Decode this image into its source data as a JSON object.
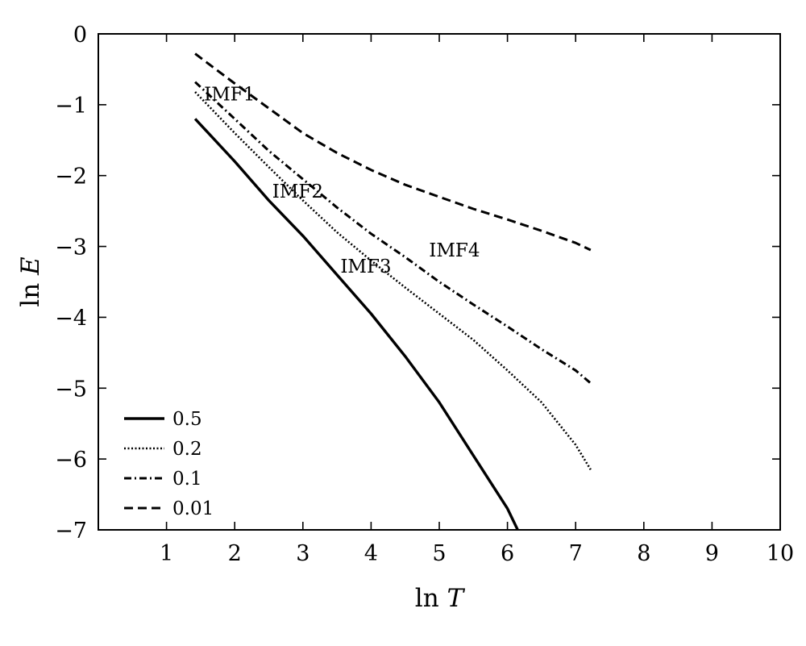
{
  "chart_data": {
    "type": "line",
    "xlabel_prefix": "ln ",
    "xlabel_var": "T",
    "ylabel_prefix": "ln ",
    "ylabel_var": "E",
    "xlim": [
      0,
      10
    ],
    "ylim": [
      -7,
      0
    ],
    "xticks": [
      "1",
      "2",
      "3",
      "4",
      "5",
      "6",
      "7",
      "8",
      "9",
      "10"
    ],
    "yticks": [
      "0",
      "−1",
      "−2",
      "−3",
      "−4",
      "−5",
      "−6",
      "−7"
    ],
    "legend_position": "bottom-left",
    "grid": false,
    "series": [
      {
        "name": "0.5",
        "style": "solid",
        "x": [
          1.42,
          2.0,
          2.5,
          3.0,
          3.5,
          4.0,
          4.5,
          5.0,
          5.5,
          6.0,
          6.15
        ],
        "y": [
          -1.2,
          -1.8,
          -2.35,
          -2.85,
          -3.4,
          -3.95,
          -4.55,
          -5.2,
          -5.95,
          -6.7,
          -7.0
        ]
      },
      {
        "name": "0.2",
        "style": "dotted",
        "x": [
          1.42,
          2.0,
          2.5,
          3.0,
          3.5,
          4.0,
          4.5,
          5.0,
          5.5,
          6.0,
          6.5,
          7.0,
          7.22
        ],
        "y": [
          -0.82,
          -1.4,
          -1.88,
          -2.35,
          -2.8,
          -3.2,
          -3.58,
          -3.95,
          -4.32,
          -4.75,
          -5.2,
          -5.8,
          -6.15
        ]
      },
      {
        "name": "0.1",
        "style": "dashdot",
        "x": [
          1.42,
          2.0,
          2.5,
          3.0,
          3.5,
          4.0,
          4.5,
          5.0,
          5.5,
          6.0,
          6.5,
          7.0,
          7.22
        ],
        "y": [
          -0.68,
          -1.2,
          -1.65,
          -2.05,
          -2.45,
          -2.82,
          -3.15,
          -3.5,
          -3.82,
          -4.13,
          -4.45,
          -4.75,
          -4.93
        ]
      },
      {
        "name": "0.01",
        "style": "dashed",
        "x": [
          1.42,
          2.0,
          2.5,
          3.0,
          3.5,
          4.0,
          4.5,
          5.0,
          5.5,
          6.0,
          6.5,
          7.0,
          7.22
        ],
        "y": [
          -0.28,
          -0.7,
          -1.05,
          -1.4,
          -1.68,
          -1.92,
          -2.13,
          -2.3,
          -2.47,
          -2.62,
          -2.78,
          -2.95,
          -3.05
        ]
      }
    ],
    "annotations": [
      {
        "text": "IMF1",
        "x": 1.55,
        "y": -0.85
      },
      {
        "text": "IMF2",
        "x": 2.55,
        "y": -2.22
      },
      {
        "text": "IMF3",
        "x": 3.55,
        "y": -3.28
      },
      {
        "text": "IMF4",
        "x": 4.85,
        "y": -3.05
      }
    ]
  }
}
